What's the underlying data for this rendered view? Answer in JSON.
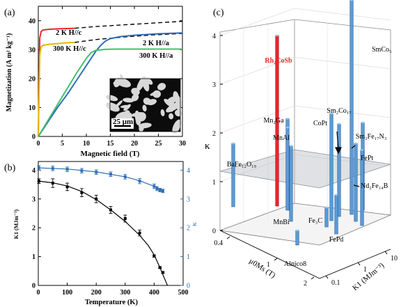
{
  "panel_labels": {
    "a": "(a)",
    "b": "(b)",
    "c": "(c)"
  },
  "chart_data": [
    {
      "panel": "(a)",
      "type": "line",
      "xlabel": "Magnetic field (T)",
      "ylabel": "Magnetization (A m² kg⁻¹)",
      "xlim": [
        0,
        30
      ],
      "ylim": [
        0,
        45
      ],
      "xticks": [
        "0",
        "5",
        "10",
        "15",
        "20",
        "25",
        "30"
      ],
      "yticks": [
        "0",
        "10",
        "20",
        "30",
        "40"
      ],
      "annotations": [
        "2 K H//c",
        "300 K H//c",
        "2 K H//a",
        "300 K H//a"
      ],
      "inset_scale_label": "25 μm",
      "series": [
        {
          "key": "2K_c_meas",
          "color": "#e8262c",
          "dash": false,
          "x": [
            0,
            0.3,
            0.6,
            1,
            2,
            4,
            6,
            7.6
          ],
          "y": [
            0,
            34,
            36.3,
            36.8,
            37,
            37.2,
            37.3,
            37.4
          ]
        },
        {
          "key": "2K_c_ext",
          "color": "#000000",
          "dash": true,
          "x": [
            7.6,
            12,
            18,
            24,
            30
          ],
          "y": [
            37.4,
            38,
            38.6,
            39.2,
            39.8
          ]
        },
        {
          "key": "300K_c_meas",
          "color": "#e6b600",
          "dash": false,
          "x": [
            0,
            0.3,
            0.6,
            1,
            2,
            4,
            6,
            7.6
          ],
          "y": [
            0,
            28,
            31,
            31.5,
            31.8,
            32.1,
            32.4,
            32.5
          ]
        },
        {
          "key": "300K_c_ext",
          "color": "#000000",
          "dash": true,
          "x": [
            7.6,
            12,
            18,
            24,
            30
          ],
          "y": [
            32.5,
            33.5,
            34.4,
            35.1,
            35.6
          ]
        },
        {
          "key": "2K_a",
          "color": "#2f6eb5",
          "dash": false,
          "x": [
            0,
            2,
            4,
            6,
            8,
            10,
            12,
            13,
            14,
            15,
            17,
            20,
            25,
            30
          ],
          "y": [
            0,
            5,
            10,
            14.5,
            19.5,
            24.5,
            29.5,
            31.5,
            33,
            33.8,
            34.5,
            35,
            35.5,
            35.8
          ]
        },
        {
          "key": "300K_a",
          "color": "#3fc06a",
          "dash": false,
          "x": [
            0,
            2,
            4,
            6,
            8,
            10,
            11,
            12,
            14,
            16,
            20,
            25,
            30
          ],
          "y": [
            0,
            5.5,
            11,
            16.5,
            22,
            27,
            29,
            29.8,
            30.1,
            30.2,
            30.2,
            30.2,
            30.2
          ]
        }
      ]
    },
    {
      "panel": "(b)",
      "type": "scatter",
      "xlabel": "Temperature (K)",
      "ylabel_left": "K1 (MJm⁻³)",
      "ylabel_right": "κ",
      "xlim": [
        0,
        500
      ],
      "ylim_left": [
        0,
        4.3
      ],
      "ylim_right": [
        0,
        4.3
      ],
      "xticks": [
        "0",
        "100",
        "200",
        "300",
        "400",
        "500"
      ],
      "yticks_left": [
        "0",
        "1",
        "2",
        "3",
        "4"
      ],
      "yticks_right": [
        "0",
        "1",
        "2",
        "3",
        "4"
      ],
      "series": [
        {
          "key": "K1",
          "color": "#000000",
          "axis": "left",
          "x": [
            2,
            50,
            100,
            150,
            200,
            250,
            300,
            350,
            400,
            420,
            430
          ],
          "y": [
            3.62,
            3.55,
            3.42,
            3.22,
            3.0,
            2.62,
            2.32,
            1.82,
            1.02,
            0.62,
            0.45
          ],
          "err": [
            0.08,
            0.15,
            0.13,
            0.14,
            0.13,
            0.12,
            0.12,
            0.1,
            0.04,
            0.03,
            0.03
          ]
        },
        {
          "key": "K1_fit",
          "color": "#000000",
          "axis": "left",
          "fit": true,
          "x": [
            0,
            50,
            100,
            150,
            200,
            250,
            300,
            350,
            380,
            400,
            420,
            430,
            440,
            446
          ],
          "y": [
            3.62,
            3.56,
            3.45,
            3.26,
            2.98,
            2.62,
            2.22,
            1.74,
            1.38,
            1.06,
            0.62,
            0.38,
            0.14,
            0.0
          ]
        },
        {
          "key": "kappa",
          "color": "#2f6eb5",
          "axis": "right",
          "x": [
            2,
            50,
            100,
            150,
            200,
            250,
            300,
            350,
            400,
            410,
            420,
            430
          ],
          "y": [
            4.08,
            4.06,
            4.03,
            3.98,
            3.93,
            3.86,
            3.77,
            3.62,
            3.44,
            3.36,
            3.31,
            3.28
          ],
          "err": [
            0.08,
            0.08,
            0.08,
            0.08,
            0.08,
            0.08,
            0.08,
            0.09,
            0.08,
            0.07,
            0.06,
            0.06
          ]
        },
        {
          "key": "kappa_fit",
          "color": "#2f6eb5",
          "axis": "right",
          "fit": true,
          "x": [
            0,
            100,
            200,
            300,
            350,
            400,
            430
          ],
          "y": [
            4.08,
            4.04,
            3.94,
            3.77,
            3.63,
            3.44,
            3.29
          ]
        }
      ]
    },
    {
      "panel": "(c)",
      "type": "bar",
      "title": "",
      "zlabel": "κ",
      "xlabel": "μ0Ms (T)",
      "ylabel": "K1 (MJm⁻³)",
      "zticks": [
        "0",
        "1",
        "2",
        "3",
        "4"
      ],
      "xticks": [
        "0.4",
        "1",
        "2"
      ],
      "yticks": [
        "0.1",
        "1",
        "10"
      ],
      "threshold_plane_kappa": 1,
      "bars": [
        {
          "label": "SmCo₅",
          "kappa": 4.4,
          "color": "#5b9bd5"
        },
        {
          "label": "Rh₂CoSb",
          "kappa": 3.5,
          "color": "#e8262c"
        },
        {
          "label": "Mn₂Ga",
          "kappa": 1.85,
          "color": "#5b9bd5"
        },
        {
          "label": "MnAl",
          "kappa": 1.7,
          "color": "#5b9bd5"
        },
        {
          "label": "CoPt",
          "kappa": 2.2,
          "color": "#5b9bd5"
        },
        {
          "label": "Sm₂Co₁₇",
          "kappa": 1.9,
          "color": "#5b9bd5"
        },
        {
          "label": "Sm₂Fe₁₇N₃",
          "kappa": 1.8,
          "color": "#5b9bd5"
        },
        {
          "label": "FePt",
          "kappa": 1.6,
          "color": "#5b9bd5"
        },
        {
          "label": "BaFe₁₂O₁₉",
          "kappa": 1.3,
          "color": "#5b9bd5"
        },
        {
          "label": "Nd₂Fe₁₄B",
          "kappa": 1.55,
          "color": "#5b9bd5"
        },
        {
          "label": "MnBi",
          "kappa": 1.55,
          "color": "#5b9bd5"
        },
        {
          "label": "Fe₃C",
          "kappa": 0.4,
          "color": "#5b9bd5"
        },
        {
          "label": "FePd",
          "kappa": 0.8,
          "color": "#5b9bd5"
        },
        {
          "label": "Alnico8",
          "kappa": 0.3,
          "color": "#5b9bd5"
        }
      ]
    }
  ]
}
